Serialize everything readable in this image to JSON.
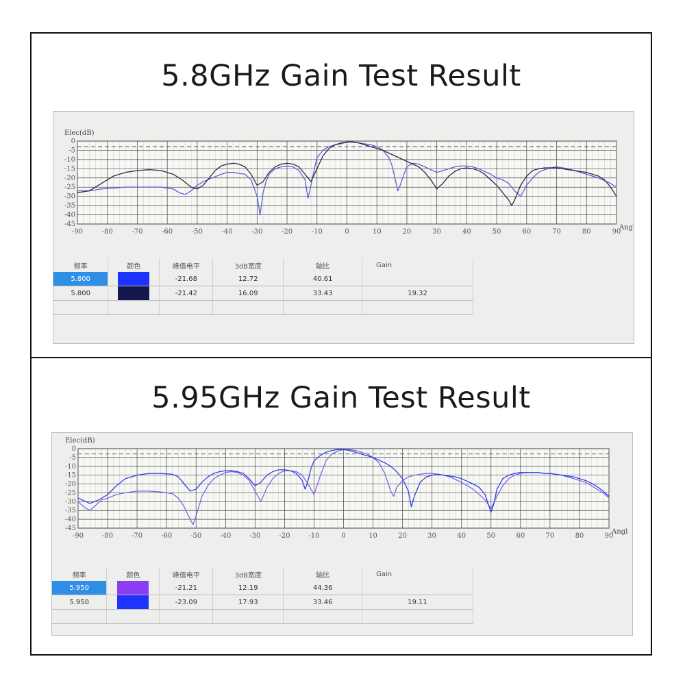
{
  "panels": [
    {
      "title": "5.8GHz Gain Test Result",
      "table": {
        "headers": [
          "频率",
          "颜色",
          "峰值电平",
          "3dB宽度",
          "轴比",
          "Gain"
        ],
        "rows": [
          {
            "freq": "5.800",
            "color": "#1f33ff",
            "peak": "-21.68",
            "bw3db": "12.72",
            "axial": "40.61",
            "gain": ""
          },
          {
            "freq": "5.800",
            "color": "#15174f",
            "peak": "-21.42",
            "bw3db": "16.09",
            "axial": "33.43",
            "gain": "19.32"
          }
        ]
      }
    },
    {
      "title": "5.95GHz Gain Test Result",
      "table": {
        "headers": [
          "频率",
          "颜色",
          "峰值电平",
          "3dB宽度",
          "轴比",
          "Gain"
        ],
        "rows": [
          {
            "freq": "5.950",
            "color": "#8a3df2",
            "peak": "-21.21",
            "bw3db": "12.19",
            "axial": "44.36",
            "gain": ""
          },
          {
            "freq": "5.950",
            "color": "#1f33ff",
            "peak": "-23.09",
            "bw3db": "17.93",
            "axial": "33.46",
            "gain": "19.11"
          }
        ]
      }
    }
  ],
  "chart_data": [
    {
      "type": "line",
      "ylabel": "Elec(dB)",
      "xlabel": "Angl",
      "xlim": [
        -90,
        90
      ],
      "ylim": [
        -45,
        0
      ],
      "xticks": [
        -90,
        -80,
        -70,
        -60,
        -50,
        -40,
        -30,
        -20,
        -10,
        0,
        10,
        20,
        30,
        40,
        50,
        60,
        70,
        80,
        90
      ],
      "yticks": [
        0,
        -5,
        -10,
        -15,
        -20,
        -25,
        -30,
        -35,
        -40,
        -45
      ],
      "reference_line_db": -3,
      "series": [
        {
          "color": "#5a5fe0",
          "x": [
            -90,
            -86,
            -82,
            -78,
            -74,
            -70,
            -66,
            -62,
            -58,
            -56,
            -54,
            -52,
            -50,
            -48,
            -45,
            -42,
            -40,
            -38,
            -36,
            -34,
            -32,
            -30,
            -29,
            -28,
            -27,
            -26,
            -24,
            -22,
            -20,
            -18,
            -16,
            -14,
            -13,
            -12,
            -11,
            -10,
            -8,
            -6,
            -4,
            -2,
            0,
            2,
            4,
            6,
            8,
            10,
            12,
            14,
            15,
            16,
            17,
            18,
            19,
            20,
            22,
            24,
            26,
            28,
            30,
            32,
            34,
            36,
            38,
            40,
            42,
            44,
            46,
            48,
            50,
            52,
            54,
            56,
            58,
            60,
            62,
            64,
            66,
            68,
            70,
            72,
            74,
            76,
            78,
            80,
            82,
            84,
            86,
            88,
            90
          ],
          "y": [
            -27,
            -27,
            -26,
            -25.5,
            -25,
            -25,
            -25,
            -25,
            -26,
            -28,
            -29,
            -27,
            -24,
            -22,
            -20,
            -18,
            -17,
            -17,
            -17.5,
            -18,
            -21,
            -30,
            -40,
            -28,
            -22,
            -18,
            -15,
            -14,
            -13.5,
            -14,
            -16,
            -21,
            -31,
            -24,
            -16,
            -9,
            -5,
            -3,
            -2,
            -1.5,
            -0.5,
            -0.5,
            -1,
            -1.5,
            -2,
            -3,
            -5,
            -9,
            -13,
            -20,
            -27,
            -23,
            -18,
            -14,
            -12,
            -12.5,
            -14,
            -15.5,
            -17,
            -16,
            -15,
            -14,
            -13.5,
            -13.5,
            -14,
            -15,
            -16.5,
            -18,
            -20,
            -21,
            -23,
            -27,
            -30,
            -24,
            -20,
            -17,
            -15.5,
            -14.5,
            -14,
            -14.5,
            -15,
            -16,
            -17,
            -18,
            -19,
            -20,
            -21.5,
            -23,
            -25
          ]
        },
        {
          "color": "#2a2a48",
          "x": [
            -90,
            -86,
            -82,
            -78,
            -74,
            -70,
            -66,
            -62,
            -58,
            -55,
            -52,
            -50,
            -48,
            -46,
            -44,
            -42,
            -40,
            -38,
            -36,
            -34,
            -32,
            -30,
            -28,
            -26,
            -24,
            -22,
            -20,
            -18,
            -16,
            -14,
            -12,
            -10,
            -8,
            -6,
            -4,
            -2,
            0,
            2,
            4,
            6,
            8,
            10,
            12,
            14,
            16,
            18,
            20,
            22,
            24,
            26,
            28,
            30,
            32,
            34,
            36,
            38,
            40,
            42,
            44,
            46,
            48,
            50,
            52,
            54,
            55,
            56,
            58,
            60,
            62,
            64,
            66,
            68,
            70,
            72,
            74,
            76,
            78,
            80,
            82,
            84,
            86,
            88,
            90
          ],
          "y": [
            -28,
            -27,
            -23,
            -19,
            -17,
            -16,
            -15.5,
            -16,
            -18,
            -21,
            -25,
            -26,
            -24,
            -20,
            -16,
            -13.5,
            -12.5,
            -12,
            -12.5,
            -14,
            -18,
            -24,
            -22,
            -17,
            -14,
            -12.5,
            -12,
            -12.5,
            -14,
            -18,
            -22,
            -15,
            -8,
            -4,
            -2,
            -1,
            -0.5,
            -0.5,
            -1,
            -2,
            -3,
            -4,
            -5,
            -6.5,
            -8,
            -9.5,
            -11,
            -12.5,
            -14,
            -17,
            -21,
            -26,
            -23,
            -19,
            -16.5,
            -15,
            -14.5,
            -15,
            -16,
            -18,
            -21,
            -24,
            -28,
            -32,
            -35,
            -32,
            -24,
            -19,
            -16,
            -15,
            -14.5,
            -14.5,
            -14.5,
            -15,
            -15.5,
            -16,
            -16.5,
            -17,
            -18,
            -19,
            -21,
            -25,
            -30
          ]
        }
      ]
    },
    {
      "type": "line",
      "ylabel": "Elec(dB)",
      "xlabel": "Angl",
      "xlim": [
        -90,
        90
      ],
      "ylim": [
        -45,
        0
      ],
      "xticks": [
        -90,
        -80,
        -70,
        -60,
        -50,
        -40,
        -30,
        -20,
        -10,
        0,
        10,
        20,
        30,
        40,
        50,
        60,
        70,
        80,
        90
      ],
      "yticks": [
        0,
        -5,
        -10,
        -15,
        -20,
        -25,
        -30,
        -35,
        -40,
        -45
      ],
      "reference_line_db": -3,
      "series": [
        {
          "color": "#7a66e8",
          "x": [
            -90,
            -88,
            -86,
            -84,
            -82,
            -80,
            -77,
            -74,
            -70,
            -66,
            -62,
            -58,
            -56,
            -54,
            -52,
            -51,
            -50,
            -48,
            -46,
            -44,
            -42,
            -40,
            -38,
            -36,
            -34,
            -32,
            -30,
            -28,
            -26,
            -24,
            -22,
            -20,
            -18,
            -16,
            -14,
            -12,
            -10,
            -8,
            -6,
            -4,
            -2,
            0,
            2,
            4,
            6,
            8,
            10,
            12,
            13,
            14,
            15,
            16,
            17,
            18,
            20,
            22,
            24,
            26,
            28,
            30,
            32,
            34,
            36,
            38,
            40,
            42,
            44,
            46,
            48,
            50,
            52,
            54,
            56,
            58,
            60,
            62,
            64,
            66,
            68,
            70,
            72,
            74,
            76,
            78,
            80,
            82,
            84,
            86,
            88,
            90
          ],
          "y": [
            -30,
            -33,
            -35,
            -32,
            -29,
            -28,
            -26,
            -25,
            -24,
            -24,
            -24.5,
            -25.5,
            -28,
            -33,
            -40,
            -43,
            -38,
            -27,
            -21,
            -17,
            -15,
            -13.5,
            -13,
            -13.5,
            -15,
            -18,
            -24,
            -30,
            -22,
            -17,
            -14,
            -12.5,
            -12.5,
            -13,
            -15,
            -20,
            -26,
            -16,
            -7,
            -3,
            -1.5,
            -0.5,
            -0.5,
            -1,
            -2,
            -3,
            -5,
            -8,
            -11,
            -14,
            -19,
            -24,
            -27,
            -22,
            -18,
            -16,
            -15,
            -14.5,
            -14,
            -14,
            -14.5,
            -15,
            -16,
            -17.5,
            -19,
            -21,
            -23,
            -26,
            -29,
            -34,
            -27,
            -21,
            -17,
            -15,
            -14,
            -13.5,
            -13.5,
            -13.5,
            -14,
            -14,
            -14.5,
            -15,
            -16,
            -17,
            -18,
            -19,
            -21,
            -23,
            -25,
            -28
          ]
        },
        {
          "color": "#2f3fe6",
          "x": [
            -90,
            -86,
            -83,
            -80,
            -77,
            -74,
            -70,
            -66,
            -62,
            -58,
            -56,
            -54,
            -52,
            -50,
            -48,
            -46,
            -44,
            -42,
            -40,
            -38,
            -36,
            -34,
            -32,
            -30,
            -28,
            -26,
            -24,
            -22,
            -20,
            -18,
            -16,
            -14,
            -13,
            -12,
            -11,
            -10,
            -8,
            -6,
            -4,
            -2,
            0,
            2,
            4,
            6,
            8,
            10,
            12,
            14,
            16,
            18,
            20,
            22,
            23,
            24,
            26,
            28,
            30,
            32,
            34,
            36,
            38,
            40,
            42,
            44,
            46,
            48,
            49,
            50,
            51,
            52,
            54,
            56,
            58,
            60,
            62,
            64,
            66,
            68,
            70,
            72,
            74,
            76,
            78,
            80,
            82,
            84,
            86,
            88,
            90
          ],
          "y": [
            -28,
            -31,
            -29,
            -26,
            -21,
            -17,
            -15,
            -14,
            -14,
            -14.5,
            -16,
            -20,
            -24,
            -23,
            -19,
            -16,
            -14,
            -13,
            -12.5,
            -12.5,
            -13,
            -14,
            -17,
            -21,
            -19,
            -15,
            -13,
            -12,
            -12,
            -12.5,
            -14,
            -18,
            -23,
            -18,
            -11,
            -7,
            -4,
            -2,
            -1,
            -0.5,
            -0.5,
            -1,
            -2,
            -3,
            -4,
            -5,
            -6.5,
            -8,
            -10,
            -13,
            -17,
            -24,
            -33,
            -27,
            -19,
            -16,
            -15,
            -14.5,
            -15,
            -15.5,
            -16,
            -17,
            -18.5,
            -20,
            -22,
            -26,
            -31,
            -36,
            -31,
            -23,
            -17,
            -15,
            -14,
            -13.5,
            -13.5,
            -13.5,
            -13.5,
            -14,
            -14,
            -14.5,
            -15,
            -15.5,
            -16,
            -17,
            -18,
            -19.5,
            -21.5,
            -24,
            -27
          ]
        }
      ]
    }
  ]
}
